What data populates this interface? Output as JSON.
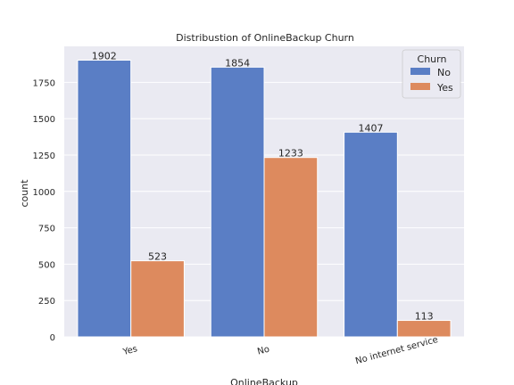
{
  "chart_data": {
    "type": "bar",
    "title": "Distribustion of OnlineBackup Churn",
    "xlabel": "OnlineBackup",
    "ylabel": "count",
    "categories": [
      "Yes",
      "No",
      "No internet service"
    ],
    "series": [
      {
        "name": "No",
        "values": [
          1902,
          1854,
          1407
        ],
        "color": "#5a7ec5"
      },
      {
        "name": "Yes",
        "values": [
          523,
          1233,
          113
        ],
        "color": "#dd8a5e"
      }
    ],
    "ylim": [
      0,
      1997
    ],
    "yticks": [
      0,
      250,
      500,
      750,
      1000,
      1250,
      1500,
      1750
    ],
    "grid": true,
    "legend": {
      "title": "Churn",
      "placement": "top-right"
    },
    "background": "#eaeaf2"
  }
}
